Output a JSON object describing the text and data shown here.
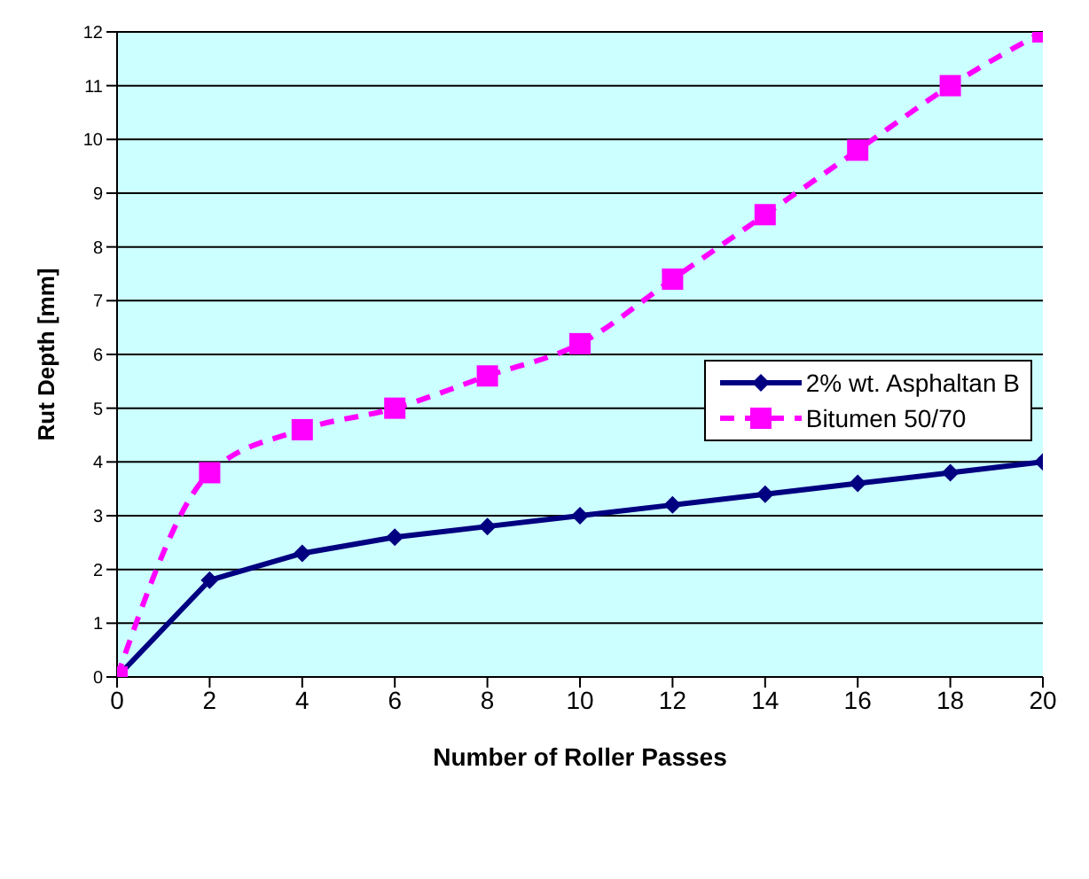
{
  "chart_data": {
    "type": "line",
    "xlabel": "Number of Roller Passes",
    "ylabel": "Rut Depth [mm]",
    "x": [
      0,
      2,
      4,
      6,
      8,
      10,
      12,
      14,
      16,
      18,
      20
    ],
    "series": [
      {
        "name": "2% wt. Asphaltan B",
        "color": "#000080",
        "marker": "diamond",
        "line_style": "solid",
        "values": [
          0,
          1.8,
          2.3,
          2.6,
          2.8,
          3.0,
          3.2,
          3.4,
          3.6,
          3.8,
          4.0
        ]
      },
      {
        "name": "Bitumen 50/70",
        "color": "#ff00ff",
        "marker": "square",
        "line_style": "dashed",
        "values": [
          0,
          3.8,
          4.6,
          5.0,
          5.6,
          6.2,
          7.4,
          8.6,
          9.8,
          11.0,
          12.0
        ]
      }
    ],
    "xlim": [
      0,
      20
    ],
    "xticks": [
      0,
      2,
      4,
      6,
      8,
      10,
      12,
      14,
      16,
      18,
      20
    ],
    "ylim": [
      0,
      12
    ],
    "yticks": [
      0,
      1,
      2,
      3,
      4,
      5,
      6,
      7,
      8,
      9,
      10,
      11,
      12
    ],
    "grid": "y",
    "legend": "right"
  }
}
